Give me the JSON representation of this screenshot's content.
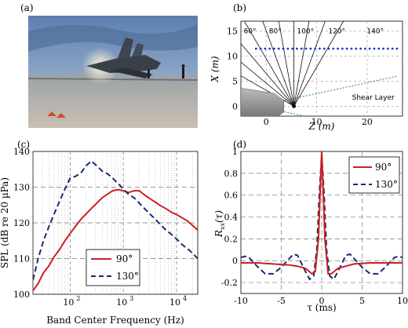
{
  "panels": {
    "a": {
      "label": "(a)"
    },
    "b": {
      "label": "(b)"
    },
    "c": {
      "label": "(c)"
    },
    "d": {
      "label": "(d)"
    }
  },
  "chart_data": [
    {
      "panel": "b",
      "type": "line",
      "xlabel": "Z (m)",
      "ylabel": "X (m)",
      "xlim": [
        -5,
        27
      ],
      "ylim": [
        -2,
        17
      ],
      "x_ticks": [
        "0",
        "10",
        "20"
      ],
      "y_ticks": [
        "0",
        "5",
        "10",
        "15"
      ],
      "grid": true,
      "source": {
        "z": 5.5,
        "x": 0
      },
      "array_x": 11.5,
      "array_z_range": [
        -2,
        26
      ],
      "ray_angles": [
        60,
        70,
        80,
        90,
        100,
        110,
        120,
        130,
        140,
        150
      ],
      "angle_labels": [
        "60°",
        "80°",
        "100°",
        "120°",
        "140°"
      ],
      "annotation": "Shear Layer",
      "shear_layer_lines": [
        [
          [
            3,
            1
          ],
          [
            26,
            6
          ]
        ],
        [
          [
            3,
            -1
          ],
          [
            26,
            -6
          ]
        ]
      ]
    },
    {
      "panel": "c",
      "type": "line",
      "xlabel": "Band Center Frequency (Hz)",
      "ylabel": "SPL (dB re 20 µPa)",
      "xscale": "log",
      "xlim": [
        20,
        25000
      ],
      "ylim": [
        100,
        140
      ],
      "x_ticks": [
        "10",
        "10",
        "10"
      ],
      "x_tick_exps": [
        "2",
        "3",
        "4"
      ],
      "y_ticks": [
        "100",
        "110",
        "120",
        "130",
        "140"
      ],
      "grid": true,
      "legend_placement": "bottom-left",
      "series": [
        {
          "name": "90°",
          "color": "#cc1f1f",
          "style": "solid",
          "x": [
            20,
            25,
            31.5,
            40,
            50,
            63,
            80,
            100,
            125,
            160,
            200,
            250,
            315,
            400,
            500,
            630,
            800,
            1000,
            1250,
            1600,
            2000,
            2500,
            3150,
            4000,
            5000,
            6300,
            8000,
            10000,
            12500,
            16000,
            20000,
            25000
          ],
          "y": [
            101,
            103,
            106,
            108,
            110.5,
            112.5,
            115,
            117,
            119,
            121,
            122.5,
            124,
            125.5,
            127,
            128,
            129,
            129.3,
            129,
            128.5,
            129,
            129,
            127.8,
            126.8,
            125.8,
            124.8,
            124,
            123,
            122.3,
            121.5,
            120.5,
            119.3,
            118
          ]
        },
        {
          "name": "130°",
          "color": "#1a2a6e",
          "style": "dashed",
          "x": [
            20,
            25,
            31.5,
            40,
            50,
            63,
            80,
            100,
            125,
            160,
            200,
            250,
            315,
            400,
            500,
            630,
            800,
            1000,
            1250,
            1600,
            2000,
            2500,
            3150,
            4000,
            5000,
            6300,
            8000,
            10000,
            12500,
            16000,
            20000,
            25000
          ],
          "y": [
            104,
            110,
            115,
            119,
            122.5,
            126,
            129.5,
            132.5,
            133,
            134,
            136,
            137.3,
            136,
            134.5,
            133.8,
            132.5,
            131,
            129.5,
            128,
            127,
            125.5,
            124,
            122.5,
            121,
            119.5,
            118,
            116.8,
            115.5,
            114,
            112.8,
            111.5,
            110
          ]
        }
      ]
    },
    {
      "panel": "d",
      "type": "line",
      "xlabel": "τ (ms)",
      "ylabel": "R_xx(τ)",
      "xlim": [
        -10,
        10
      ],
      "ylim": [
        -0.3,
        1
      ],
      "x_ticks": [
        "-10",
        "-5",
        "0",
        "5",
        "10"
      ],
      "y_ticks": [
        "-0.2",
        "0",
        "0.2",
        "0.4",
        "0.6",
        "0.8",
        "1"
      ],
      "grid": true,
      "legend_placement": "top-right",
      "series": [
        {
          "name": "90°",
          "color": "#cc1f1f",
          "style": "solid",
          "x": [
            -10,
            -8,
            -6,
            -4,
            -3,
            -2,
            -1.2,
            -0.8,
            -0.4,
            -0.2,
            0,
            0.2,
            0.4,
            0.8,
            1.2,
            2,
            3,
            4,
            6,
            8,
            10
          ],
          "y": [
            -0.02,
            -0.02,
            -0.03,
            -0.04,
            -0.05,
            -0.07,
            -0.12,
            -0.1,
            0.2,
            0.6,
            1,
            0.6,
            0.2,
            -0.12,
            -0.12,
            -0.07,
            -0.05,
            -0.03,
            -0.02,
            -0.02,
            -0.02
          ]
        },
        {
          "name": "130°",
          "color": "#1a2a6e",
          "style": "dashed",
          "x": [
            -10,
            -9.5,
            -9,
            -8,
            -7,
            -6,
            -5,
            -4,
            -3.5,
            -3,
            -2,
            -1.5,
            -1,
            -0.6,
            -0.3,
            0,
            0.3,
            0.6,
            1,
            1.5,
            2,
            3,
            3.5,
            4,
            5,
            6,
            7,
            8,
            9,
            9.5,
            10
          ],
          "y": [
            0.03,
            0.04,
            0.03,
            -0.05,
            -0.12,
            -0.12,
            -0.06,
            0.02,
            0.06,
            0.05,
            -0.1,
            -0.17,
            -0.14,
            0.1,
            0.6,
            0.97,
            0.6,
            0.1,
            -0.14,
            -0.17,
            -0.1,
            0.05,
            0.06,
            0.02,
            -0.06,
            -0.12,
            -0.12,
            -0.05,
            0.03,
            0.04,
            0.03
          ]
        }
      ]
    }
  ]
}
